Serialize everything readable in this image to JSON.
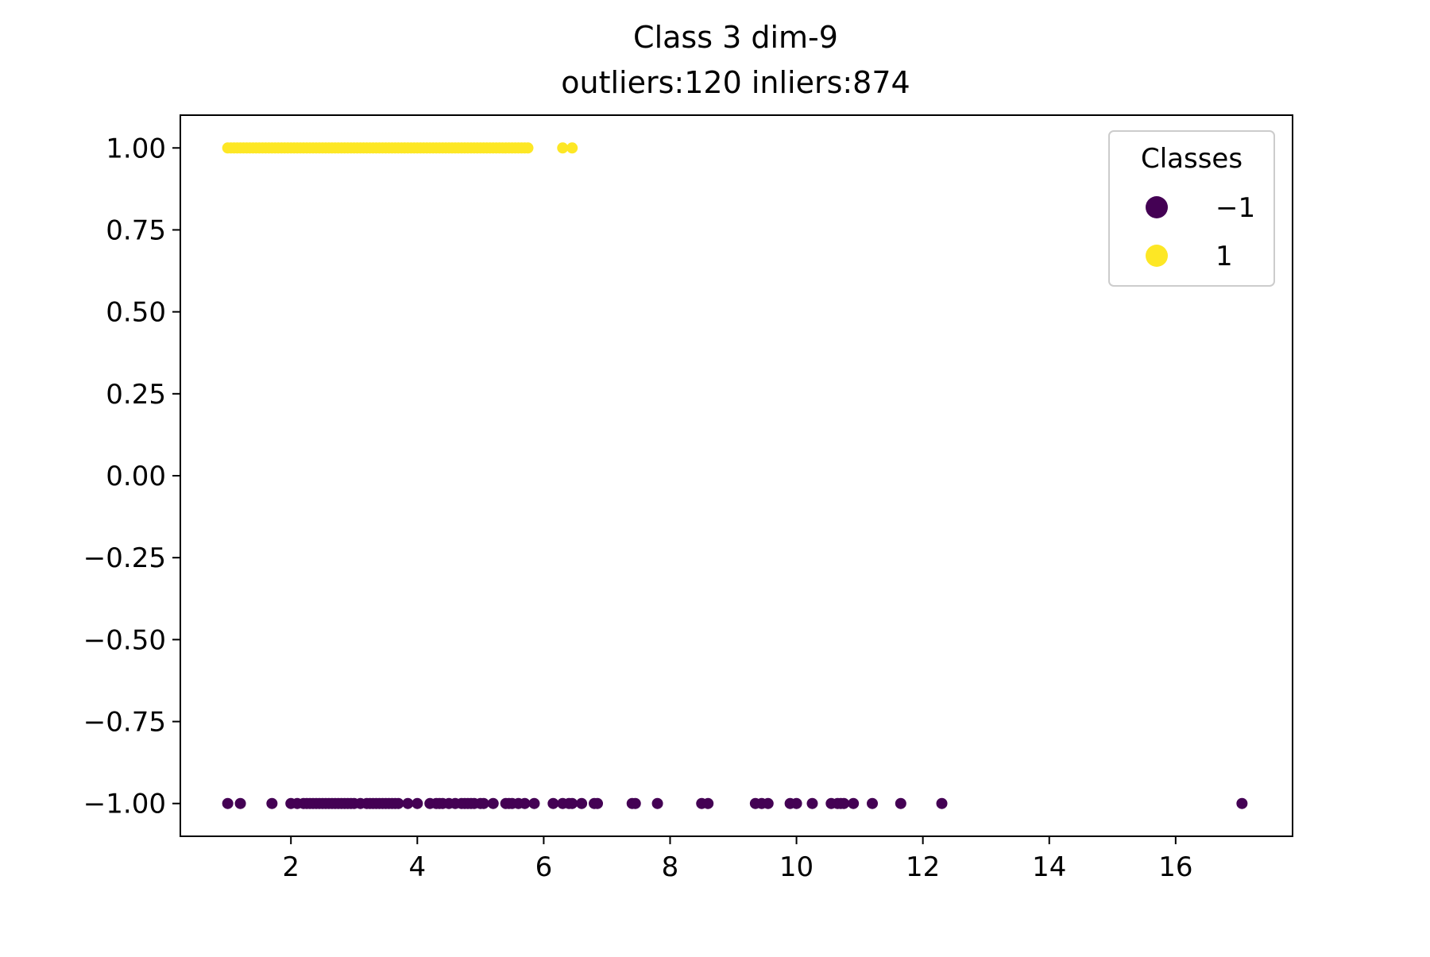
{
  "chart_data": {
    "type": "scatter",
    "title": "Class 3 dim-9",
    "subtitle": "outliers:120  inliers:874",
    "xlabel": "",
    "ylabel": "",
    "xlim": [
      0.25,
      17.85
    ],
    "ylim": [
      -1.1,
      1.1
    ],
    "xticks": [
      2,
      4,
      6,
      8,
      10,
      12,
      14,
      16
    ],
    "xtick_labels": [
      "2",
      "4",
      "6",
      "8",
      "10",
      "12",
      "14",
      "16"
    ],
    "yticks": [
      1.0,
      0.75,
      0.5,
      0.25,
      0.0,
      -0.25,
      -0.5,
      -0.75,
      -1.0
    ],
    "ytick_labels": [
      "1.00",
      "0.75",
      "0.50",
      "0.25",
      "0.00",
      "−0.25",
      "−0.50",
      "−0.75",
      "−1.00"
    ],
    "grid": false,
    "legend": {
      "title": "Classes",
      "placement": "top-right",
      "entries": [
        {
          "label": "−1",
          "color": "#440154"
        },
        {
          "label": "1",
          "color": "#fde725"
        }
      ]
    },
    "series": [
      {
        "color": "#440154",
        "y": -1,
        "x": [
          1.0,
          1.2,
          1.7,
          2.0,
          2.1,
          2.2,
          2.25,
          2.3,
          2.35,
          2.4,
          2.45,
          2.5,
          2.55,
          2.6,
          2.65,
          2.7,
          2.75,
          2.8,
          2.85,
          2.9,
          2.95,
          3.0,
          3.1,
          3.2,
          3.25,
          3.3,
          3.35,
          3.4,
          3.45,
          3.5,
          3.55,
          3.6,
          3.65,
          3.7,
          3.85,
          4.0,
          4.2,
          4.3,
          4.35,
          4.4,
          4.5,
          4.6,
          4.7,
          4.75,
          4.8,
          4.85,
          4.9,
          5.0,
          5.05,
          5.2,
          5.4,
          5.45,
          5.5,
          5.6,
          5.7,
          5.85,
          6.15,
          6.3,
          6.4,
          6.45,
          6.6,
          6.8,
          6.85,
          7.4,
          7.45,
          7.8,
          8.5,
          8.6,
          9.35,
          9.45,
          9.55,
          9.9,
          10.0,
          10.25,
          10.55,
          10.65,
          10.7,
          10.75,
          10.9,
          11.2,
          11.65,
          12.3,
          17.05
        ]
      },
      {
        "color": "#fde725",
        "y": 1,
        "x": [
          1.0,
          1.05,
          1.1,
          1.15,
          1.2,
          1.25,
          1.3,
          1.35,
          1.4,
          1.45,
          1.5,
          1.55,
          1.6,
          1.65,
          1.7,
          1.75,
          1.8,
          1.85,
          1.9,
          1.95,
          2.0,
          2.05,
          2.1,
          2.15,
          2.2,
          2.25,
          2.3,
          2.35,
          2.4,
          2.45,
          2.5,
          2.55,
          2.6,
          2.65,
          2.7,
          2.75,
          2.8,
          2.85,
          2.9,
          2.95,
          3.0,
          3.05,
          3.1,
          3.15,
          3.2,
          3.25,
          3.3,
          3.35,
          3.4,
          3.45,
          3.5,
          3.55,
          3.6,
          3.65,
          3.7,
          3.75,
          3.8,
          3.85,
          3.9,
          3.95,
          4.0,
          4.05,
          4.1,
          4.15,
          4.2,
          4.25,
          4.3,
          4.35,
          4.4,
          4.45,
          4.5,
          4.55,
          4.6,
          4.65,
          4.7,
          4.75,
          4.8,
          4.85,
          4.9,
          4.95,
          5.0,
          5.05,
          5.1,
          5.15,
          5.2,
          5.25,
          5.3,
          5.35,
          5.4,
          5.45,
          5.5,
          5.55,
          5.6,
          5.65,
          5.7,
          5.75,
          6.3,
          6.45
        ]
      }
    ]
  }
}
